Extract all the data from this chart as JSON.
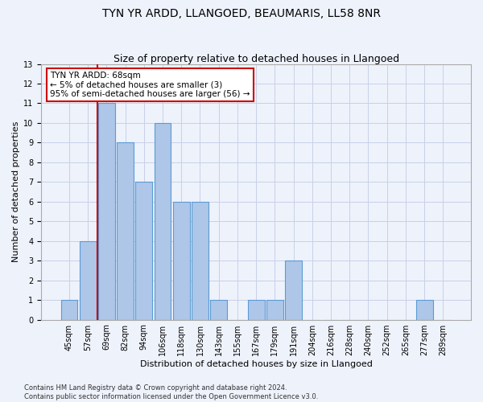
{
  "title": "TYN YR ARDD, LLANGOED, BEAUMARIS, LL58 8NR",
  "subtitle": "Size of property relative to detached houses in Llangoed",
  "xlabel": "Distribution of detached houses by size in Llangoed",
  "ylabel": "Number of detached properties",
  "categories": [
    "45sqm",
    "57sqm",
    "69sqm",
    "82sqm",
    "94sqm",
    "106sqm",
    "118sqm",
    "130sqm",
    "143sqm",
    "155sqm",
    "167sqm",
    "179sqm",
    "191sqm",
    "204sqm",
    "216sqm",
    "228sqm",
    "240sqm",
    "252sqm",
    "265sqm",
    "277sqm",
    "289sqm"
  ],
  "values": [
    1,
    4,
    11,
    9,
    7,
    10,
    6,
    6,
    1,
    0,
    1,
    1,
    3,
    0,
    0,
    0,
    0,
    0,
    0,
    1,
    0
  ],
  "bar_color": "#aec6e8",
  "bar_edge_color": "#5b9bd5",
  "red_line_x": 1.5,
  "annotation_text": "TYN YR ARDD: 68sqm\n← 5% of detached houses are smaller (3)\n95% of semi-detached houses are larger (56) →",
  "annotation_box_color": "#ffffff",
  "annotation_box_edge_color": "#cc0000",
  "ylim": [
    0,
    13
  ],
  "yticks": [
    0,
    1,
    2,
    3,
    4,
    5,
    6,
    7,
    8,
    9,
    10,
    11,
    12,
    13
  ],
  "footer_line1": "Contains HM Land Registry data © Crown copyright and database right 2024.",
  "footer_line2": "Contains public sector information licensed under the Open Government Licence v3.0.",
  "background_color": "#eef2fb",
  "grid_color": "#c8d0e8",
  "title_fontsize": 10,
  "subtitle_fontsize": 9,
  "xlabel_fontsize": 8,
  "ylabel_fontsize": 8,
  "tick_fontsize": 7,
  "annot_fontsize": 7.5,
  "footer_fontsize": 6
}
